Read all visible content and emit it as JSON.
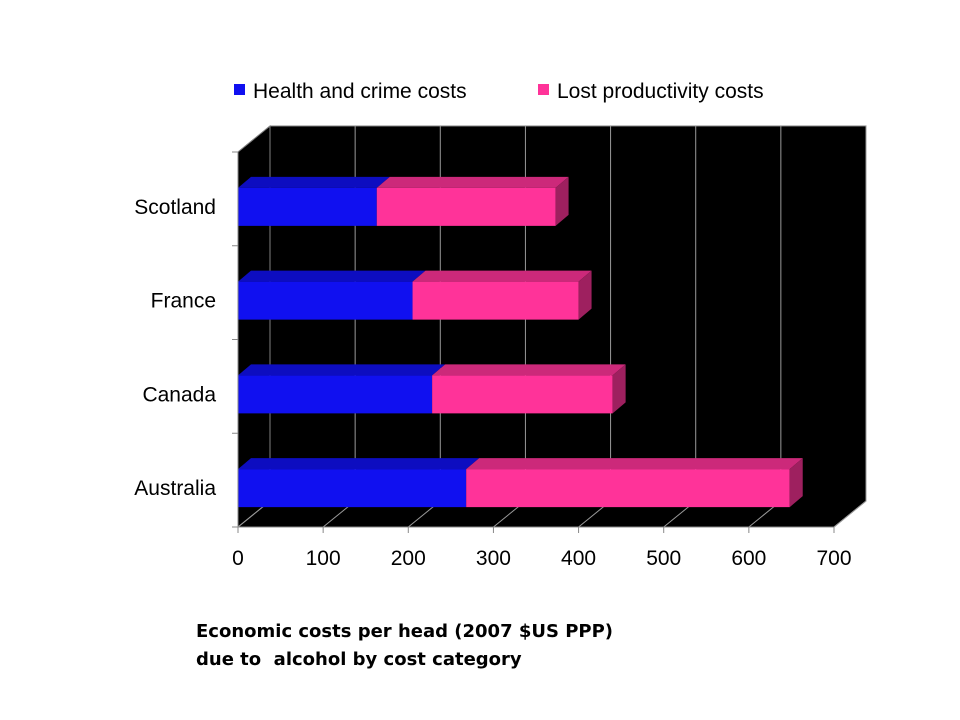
{
  "chart_data": {
    "type": "bar",
    "orientation": "horizontal",
    "stacked": true,
    "three_d": true,
    "categories": [
      "Scotland",
      "France",
      "Canada",
      "Australia"
    ],
    "series": [
      {
        "name": "Health and crime costs",
        "color": "#1010f0",
        "values": [
          163,
          205,
          228,
          268
        ]
      },
      {
        "name": "Lost productivity costs",
        "color": "#ff3399",
        "values": [
          210,
          195,
          212,
          380
        ]
      }
    ],
    "xlim": [
      0,
      700
    ],
    "xticks": [
      0,
      100,
      200,
      300,
      400,
      500,
      600,
      700
    ],
    "grid": true,
    "plot_background": "#000000",
    "legend_position": "top"
  },
  "caption": {
    "line1": "Economic costs per head (2007 $US PPP)",
    "line2": "due to  alcohol by cost category"
  }
}
